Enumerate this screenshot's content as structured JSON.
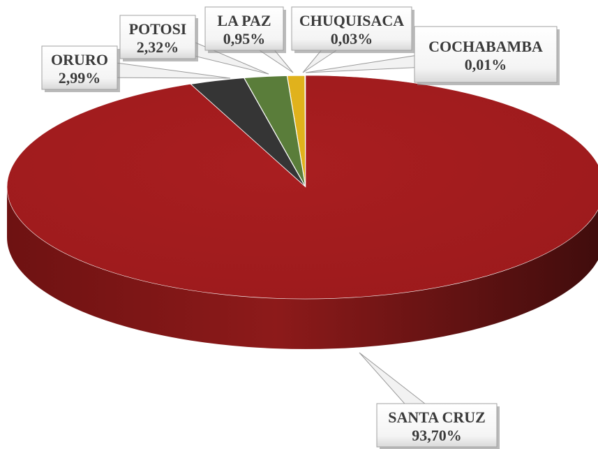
{
  "chart_data": {
    "type": "pie",
    "categories": [
      "SANTA CRUZ",
      "ORURO",
      "POTOSI",
      "LA PAZ",
      "CHUQUISACA",
      "COCHABAMBA"
    ],
    "values": [
      93.7,
      2.99,
      2.32,
      0.95,
      0.03,
      0.01
    ],
    "value_labels": [
      "93,70%",
      "2,99%",
      "2,32%",
      "0,95%",
      "0,03%",
      "0,01%"
    ],
    "colors": [
      "#a51c1e",
      "#353535",
      "#5a7d3a",
      "#e0b21c",
      "#4f7fbf",
      "#7f6aa8"
    ],
    "legend": "none",
    "style": "3d-pie"
  }
}
